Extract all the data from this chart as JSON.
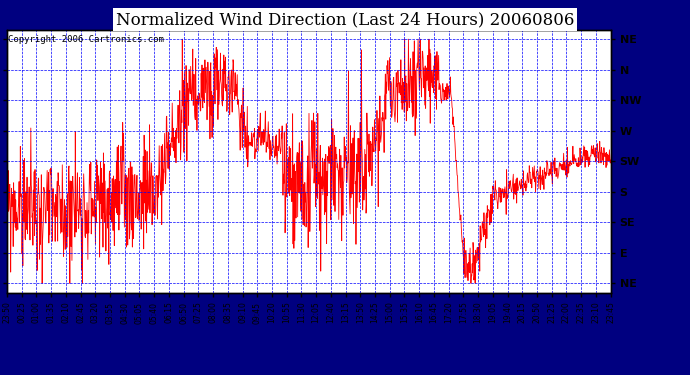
{
  "title": "Normalized Wind Direction (Last 24 Hours) 20060806",
  "copyright": "Copyright 2006 Cartronics.com",
  "fig_bg_color": "#000080",
  "plot_bg_color": "#ffffff",
  "title_bg_color": "#ffffff",
  "line_color": "#ff0000",
  "grid_color": "#0000ff",
  "ytick_labels": [
    "NE",
    "N",
    "NW",
    "W",
    "SW",
    "S",
    "SE",
    "E",
    "NE"
  ],
  "ytick_values": [
    8,
    7,
    6,
    5,
    4,
    3,
    2,
    1,
    0
  ],
  "xtick_labels": [
    "23:50",
    "00:25",
    "01:00",
    "01:35",
    "02:10",
    "02:45",
    "03:20",
    "03:55",
    "04:30",
    "05:05",
    "05:40",
    "06:15",
    "06:50",
    "07:25",
    "08:00",
    "08:35",
    "09:10",
    "09:45",
    "10:20",
    "10:55",
    "11:30",
    "12:05",
    "12:40",
    "13:15",
    "13:50",
    "14:25",
    "15:00",
    "15:35",
    "16:10",
    "16:45",
    "17:20",
    "17:55",
    "18:30",
    "19:05",
    "19:40",
    "20:15",
    "20:50",
    "21:25",
    "22:00",
    "22:35",
    "23:10",
    "23:45"
  ],
  "num_points": 1440,
  "ylim": [
    -0.3,
    8.3
  ],
  "line_width": 0.6,
  "grid_linewidth": 0.5,
  "title_fontsize": 12,
  "xlabel_fontsize": 5.5,
  "ylabel_fontsize": 8,
  "copyright_fontsize": 6.5
}
